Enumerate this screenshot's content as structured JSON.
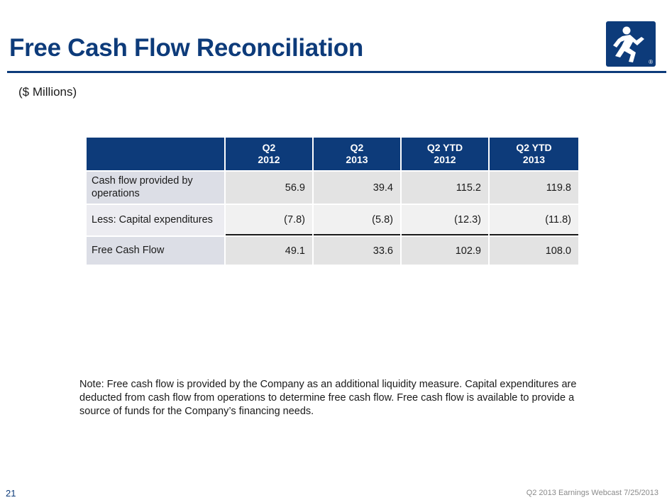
{
  "slide": {
    "title": "Free Cash Flow Reconciliation",
    "subtitle": "($ Millions)",
    "page_number": "21",
    "footer": "Q2 2013 Earnings Webcast 7/25/2013",
    "logo_icon": "running-man-logo-icon",
    "logo_registered": "®",
    "brand_color": "#0d3b7a"
  },
  "table": {
    "headers": [
      {
        "line1": "Q2",
        "line2": "2012"
      },
      {
        "line1": "Q2",
        "line2": "2013"
      },
      {
        "line1": "Q2 YTD",
        "line2": "2012"
      },
      {
        "line1": "Q2 YTD",
        "line2": "2013"
      }
    ],
    "rows": [
      {
        "label": "Cash flow provided by operations",
        "values": [
          "56.9",
          "39.4",
          "115.2",
          "119.8"
        ]
      },
      {
        "label": "Less: Capital expenditures",
        "values": [
          "(7.8)",
          "(5.8)",
          "(12.3)",
          "(11.8)"
        ]
      },
      {
        "label": "Free Cash Flow",
        "values": [
          "49.1",
          "33.6",
          "102.9",
          "108.0"
        ]
      }
    ]
  },
  "note": "Note:  Free cash flow is provided by the Company as an additional liquidity measure.  Capital expenditures are deducted from cash flow from operations to determine free cash flow.  Free cash flow is available to provide a source of funds for the Company’s financing needs."
}
